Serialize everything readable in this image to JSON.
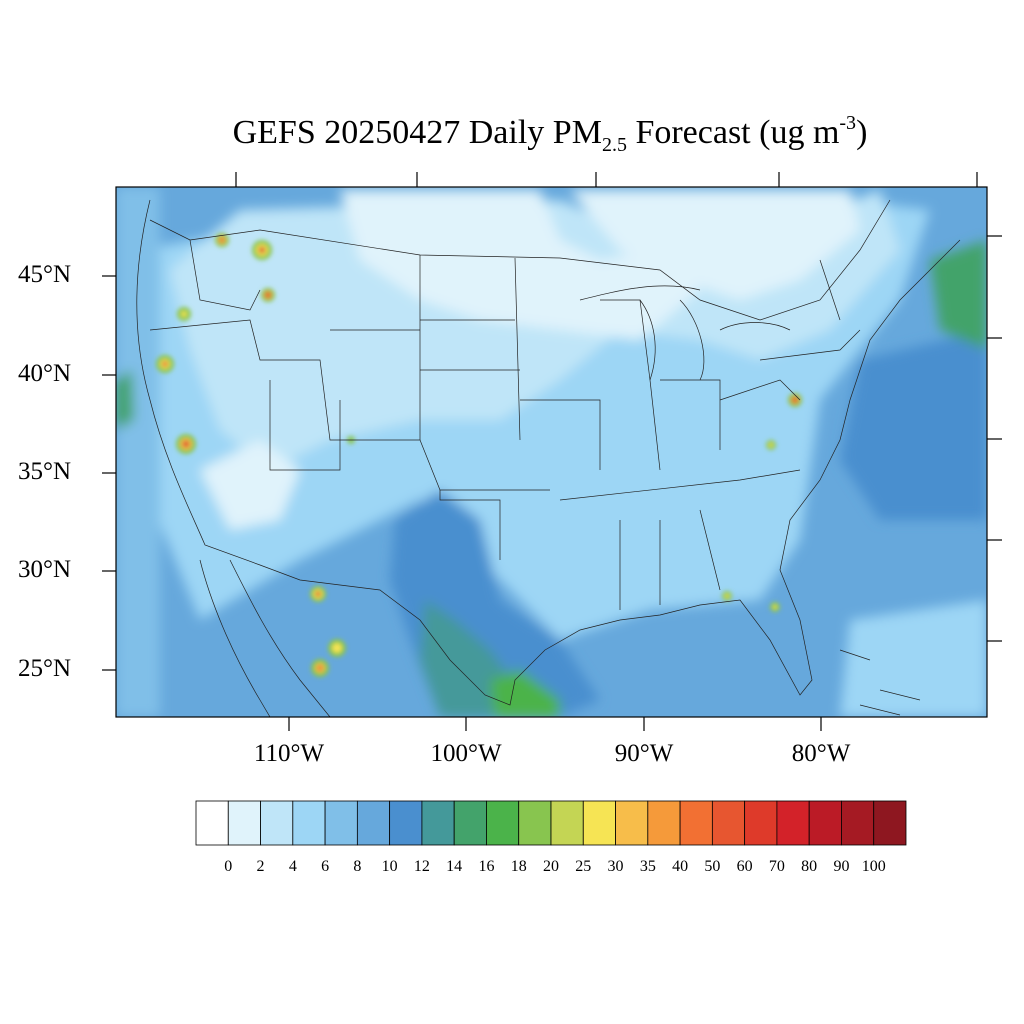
{
  "title": {
    "main": "GEFS 20250427 Daily PM",
    "subscript": "2.5",
    "after_sub": " Forecast (ug m",
    "superscript": "-3",
    "end": ")"
  },
  "map": {
    "lat_labels": [
      "45°N",
      "40°N",
      "35°N",
      "30°N",
      "25°N"
    ],
    "lon_labels": [
      "110°W",
      "100°W",
      "90°W",
      "80°W"
    ]
  },
  "colorbar": {
    "labels": [
      "0",
      "2",
      "4",
      "6",
      "8",
      "10",
      "12",
      "14",
      "16",
      "18",
      "20",
      "25",
      "30",
      "35",
      "40",
      "50",
      "60",
      "70",
      "80",
      "90",
      "100"
    ],
    "colors": [
      "#ffffff",
      "#e0f3fb",
      "#bfe5f8",
      "#9dd6f5",
      "#80bfe8",
      "#66a8dc",
      "#4a8fcf",
      "#44999a",
      "#43a36b",
      "#4bb34a",
      "#88c54f",
      "#c4d554",
      "#f6e454",
      "#f7bd4a",
      "#f59a3a",
      "#f27033",
      "#e75630",
      "#de3a2a",
      "#d32229",
      "#bb1b26",
      "#a51a23",
      "#8e1720"
    ]
  }
}
